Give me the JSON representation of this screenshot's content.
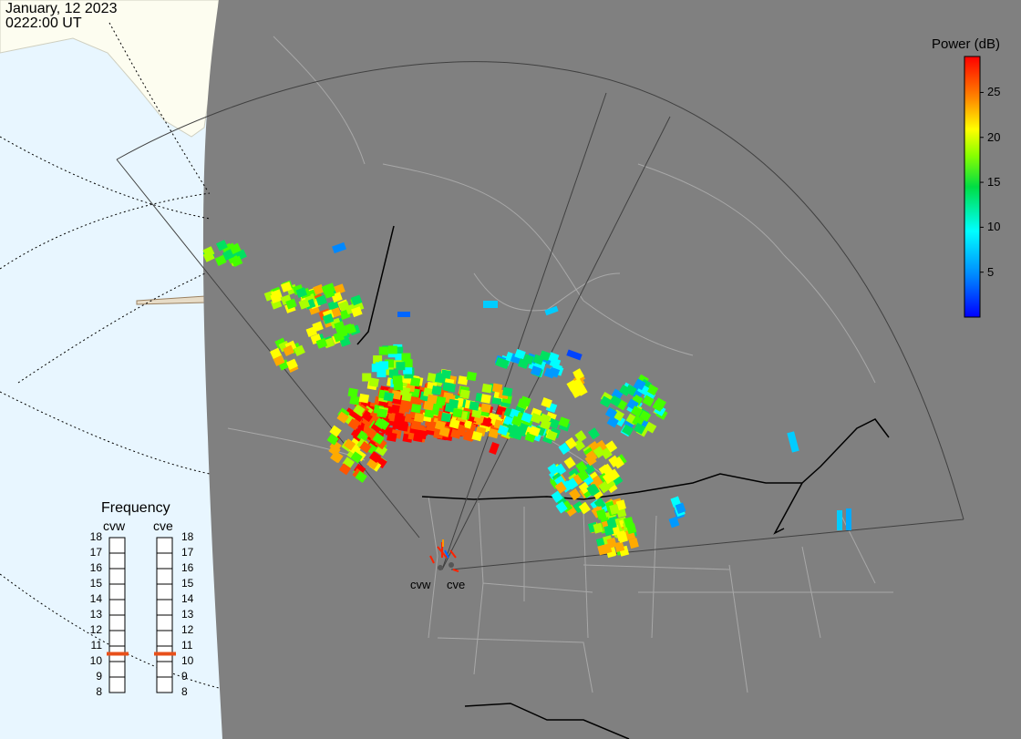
{
  "timestamp": {
    "date": "January, 12 2023",
    "time": "0222:00 UT"
  },
  "colorbar": {
    "title": "Power (dB)",
    "ticks": [
      "25",
      "20",
      "15",
      "10",
      "5"
    ],
    "tick_values": [
      25,
      20,
      15,
      10,
      5
    ],
    "range": [
      0,
      29
    ]
  },
  "frequency_panel": {
    "title": "Frequency",
    "columns": [
      {
        "name": "cvw",
        "selected_mhz": 10.5
      },
      {
        "name": "cve",
        "selected_mhz": 10.5
      }
    ],
    "scale": [
      "18",
      "17",
      "16",
      "15",
      "14",
      "13",
      "12",
      "11",
      "10",
      "9",
      "8"
    ]
  },
  "radar_sites": [
    {
      "name": "cvw"
    },
    {
      "name": "cve"
    }
  ],
  "colors": {
    "background_night": "#808080",
    "ocean_day": "#e8f6ff",
    "land_day": "#fdfdf0",
    "frequency_marker": "#e8501a",
    "border": "#000000"
  }
}
